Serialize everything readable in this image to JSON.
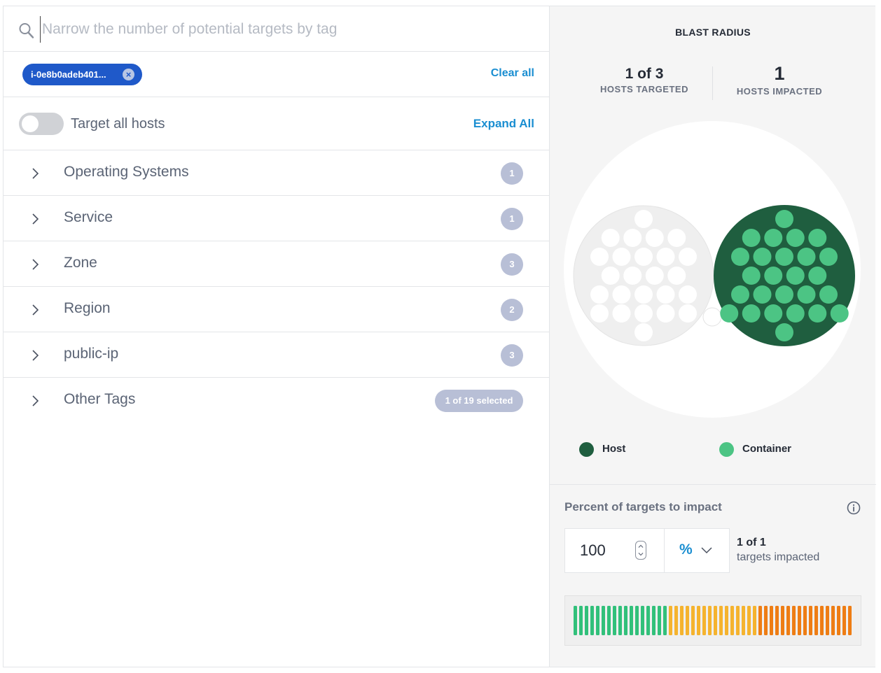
{
  "search": {
    "placeholder": "Narrow the number of potential targets by tag",
    "value": ""
  },
  "selected_chips": [
    {
      "label": "i-0e8b0adeb401..."
    }
  ],
  "clear_all_label": "Clear all",
  "target_all": {
    "label": "Target all hosts",
    "enabled": false
  },
  "expand_all_label": "Expand All",
  "tag_groups": [
    {
      "label": "Operating Systems",
      "badge": "1"
    },
    {
      "label": "Service",
      "badge": "1"
    },
    {
      "label": "Zone",
      "badge": "3"
    },
    {
      "label": "Region",
      "badge": "2"
    },
    {
      "label": "public-ip",
      "badge": "3"
    },
    {
      "label": "Other Tags",
      "badge": "1 of 19 selected"
    }
  ],
  "blast_radius": {
    "title": "BLAST RADIUS",
    "hosts_targeted_value": "1 of 3",
    "hosts_targeted_label": "HOSTS TARGETED",
    "hosts_impacted_value": "1",
    "hosts_impacted_label": "HOSTS IMPACTED"
  },
  "legend": {
    "host_label": "Host",
    "container_label": "Container"
  },
  "colors": {
    "host": "#1f5e3f",
    "container": "#4cc484",
    "accent_blue": "#1a8ed1",
    "chip_blue": "#1f59c9",
    "bar_green": "#31c07a",
    "bar_yellow": "#f5b32e",
    "bar_orange": "#ee7d14"
  },
  "percent_impact": {
    "title": "Percent of targets to impact",
    "value": "100",
    "unit": "%",
    "impact_count": "1 of 1",
    "impact_label": "targets impacted"
  }
}
